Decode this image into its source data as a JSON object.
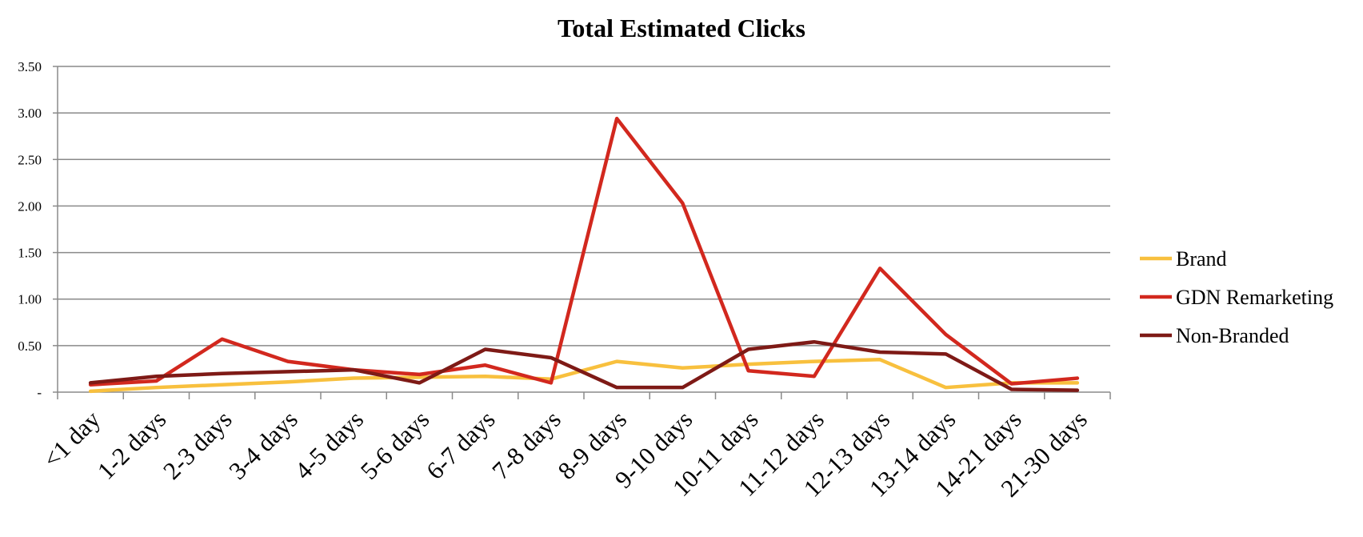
{
  "chart_data": {
    "type": "line",
    "title": "Total Estimated Clicks",
    "xlabel": "",
    "ylabel": "",
    "categories": [
      "<1 day",
      "1-2 days",
      "2-3 days",
      "3-4 days",
      "4-5 days",
      "5-6 days",
      "6-7 days",
      "7-8 days",
      "8-9 days",
      "9-10 days",
      "10-11 days",
      "11-12 days",
      "12-13 days",
      "13-14 days",
      "14-21 days",
      "21-30 days"
    ],
    "ylim": [
      0,
      3.5
    ],
    "yticks": [
      {
        "value": 0,
        "label": "-"
      },
      {
        "value": 0.5,
        "label": "0.50"
      },
      {
        "value": 1.0,
        "label": "1.00"
      },
      {
        "value": 1.5,
        "label": "1.50"
      },
      {
        "value": 2.0,
        "label": "2.00"
      },
      {
        "value": 2.5,
        "label": "2.50"
      },
      {
        "value": 3.0,
        "label": "3.00"
      },
      {
        "value": 3.5,
        "label": "3.50"
      }
    ],
    "grid": true,
    "legend": "right",
    "series": [
      {
        "name": "Brand",
        "color": "#F8C03E",
        "values": [
          0.01,
          0.05,
          0.08,
          0.11,
          0.15,
          0.16,
          0.17,
          0.14,
          0.33,
          0.26,
          0.3,
          0.33,
          0.35,
          0.05,
          0.1,
          0.1
        ]
      },
      {
        "name": "GDN Remarketing",
        "color": "#D2281E",
        "values": [
          0.08,
          0.12,
          0.57,
          0.33,
          0.24,
          0.19,
          0.29,
          0.1,
          2.94,
          2.03,
          0.23,
          0.17,
          1.33,
          0.62,
          0.09,
          0.15
        ]
      },
      {
        "name": "Non-Branded",
        "color": "#7E1A16",
        "values": [
          0.1,
          0.17,
          0.2,
          0.22,
          0.24,
          0.1,
          0.46,
          0.37,
          0.05,
          0.05,
          0.46,
          0.54,
          0.43,
          0.41,
          0.03,
          0.02
        ]
      }
    ]
  }
}
